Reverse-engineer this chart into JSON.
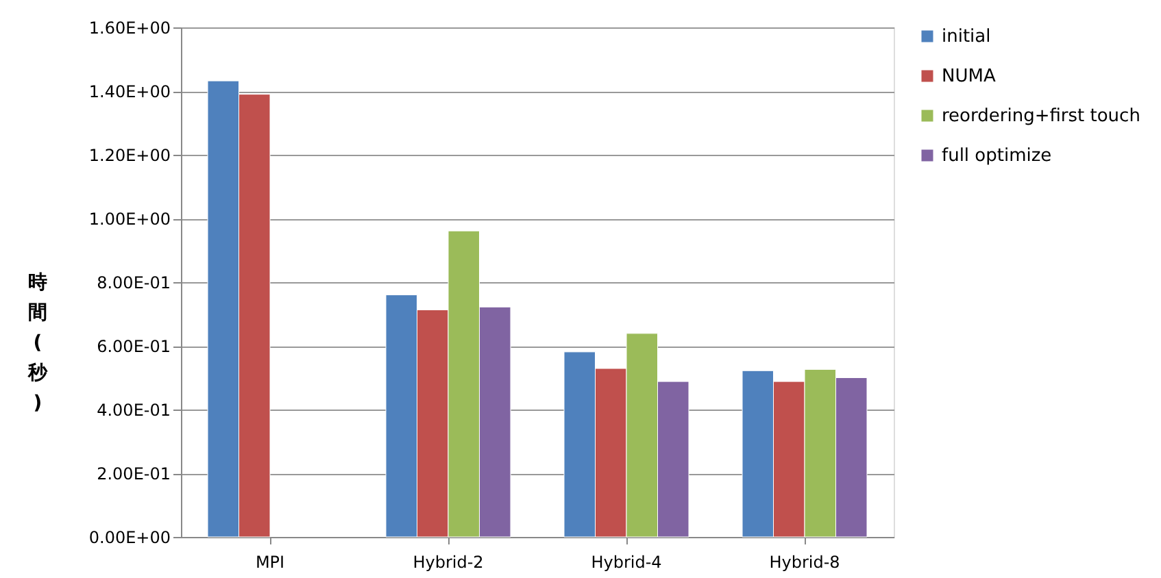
{
  "chart_data": {
    "type": "bar",
    "ylabel": "時間(秒)",
    "categories": [
      "MPI",
      "Hybrid-2",
      "Hybrid-4",
      "Hybrid-8"
    ],
    "series": [
      {
        "name": "initial",
        "color": "#4f81bd",
        "values": [
          1.432,
          0.76,
          0.581,
          0.522
        ]
      },
      {
        "name": "NUMA",
        "color": "#c0504d",
        "values": [
          1.39,
          0.713,
          0.529,
          0.488
        ]
      },
      {
        "name": "reordering+first touch",
        "color": "#9bbb59",
        "values": [
          null,
          0.961,
          0.639,
          0.526
        ]
      },
      {
        "name": "full optimize",
        "color": "#8064a2",
        "values": [
          null,
          0.722,
          0.488,
          0.5
        ]
      }
    ],
    "ylim": [
      0,
      1.6
    ],
    "yticks": [
      {
        "value": 0,
        "label": "0.00E+00"
      },
      {
        "value": 0.2,
        "label": "2.00E-01"
      },
      {
        "value": 0.4,
        "label": "4.00E-01"
      },
      {
        "value": 0.6,
        "label": "6.00E-01"
      },
      {
        "value": 0.8,
        "label": "8.00E-01"
      },
      {
        "value": 1.0,
        "label": "1.00E+00"
      },
      {
        "value": 1.2,
        "label": "1.20E+00"
      },
      {
        "value": 1.4,
        "label": "1.40E+00"
      },
      {
        "value": 1.6,
        "label": "1.60E+00"
      }
    ],
    "grid": "y",
    "legend": "right"
  }
}
